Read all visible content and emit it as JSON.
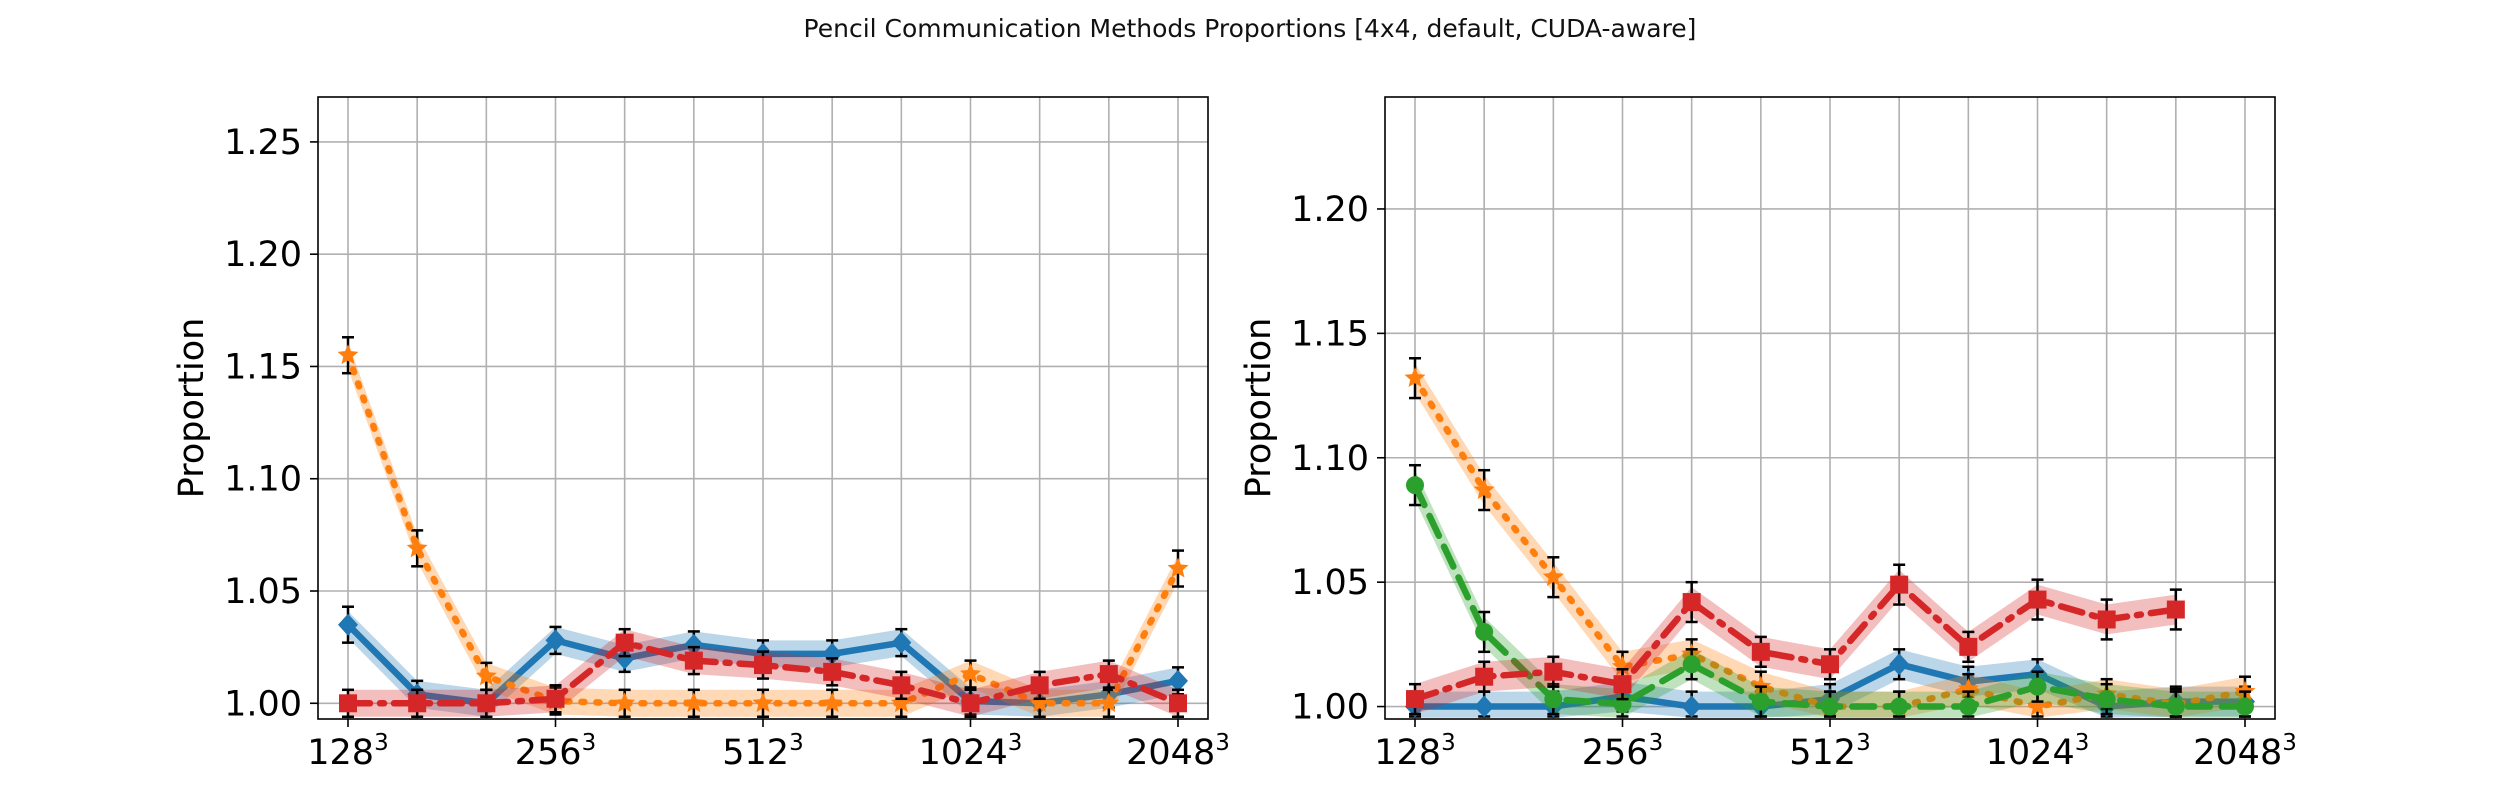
{
  "figure_title": "Pencil Communication Methods Proportions [4x4, default, CUDA-aware]",
  "chart_data": [
    {
      "type": "line",
      "panel": "left",
      "ylabel": "Proportion",
      "ylim": [
        0.993,
        1.27
      ],
      "y_ticks": [
        "1.00",
        "1.05",
        "1.10",
        "1.15",
        "1.20",
        "1.25"
      ],
      "x_ticks": [
        {
          "base": "128",
          "exp": "3"
        },
        {
          "base": "256",
          "exp": "3"
        },
        {
          "base": "512",
          "exp": "3"
        },
        {
          "base": "1024",
          "exp": "3"
        },
        {
          "base": "2048",
          "exp": "3"
        }
      ],
      "grid": true,
      "series": [
        {
          "color": "#1f77b4",
          "style": "solid",
          "marker": "diamond",
          "values": [
            1.035,
            1.004,
            1.0,
            1.028,
            1.02,
            1.026,
            1.022,
            1.022,
            1.027,
            1.001,
            1.0,
            1.004,
            1.01
          ]
        },
        {
          "color": "#ff7f0e",
          "style": "dotted",
          "marker": "star",
          "values": [
            1.155,
            1.069,
            1.012,
            1.001,
            1.0,
            1.0,
            1.0,
            1.0,
            1.0,
            1.013,
            1.0,
            1.0,
            1.06
          ]
        },
        {
          "color": "#d62728",
          "style": "dashdot",
          "marker": "square",
          "values": [
            1.0,
            1.0,
            1.0,
            1.002,
            1.027,
            1.019,
            1.017,
            1.014,
            1.008,
            1.0,
            1.008,
            1.013,
            1.0
          ]
        }
      ]
    },
    {
      "type": "line",
      "panel": "right",
      "ylabel": "Proportion",
      "ylim": [
        0.995,
        1.245
      ],
      "y_ticks": [
        "1.00",
        "1.05",
        "1.10",
        "1.15",
        "1.20"
      ],
      "x_ticks": [
        {
          "base": "128",
          "exp": "3"
        },
        {
          "base": "256",
          "exp": "3"
        },
        {
          "base": "512",
          "exp": "3"
        },
        {
          "base": "1024",
          "exp": "3"
        },
        {
          "base": "2048",
          "exp": "3"
        }
      ],
      "grid": true,
      "series": [
        {
          "color": "#1f77b4",
          "style": "solid",
          "marker": "diamond",
          "values": [
            1.0,
            1.0,
            1.0,
            1.004,
            1.0,
            1.0,
            1.003,
            1.017,
            1.01,
            1.013,
            1.0,
            1.002,
            1.002
          ]
        },
        {
          "color": "#ff7f0e",
          "style": "dotted",
          "marker": "star",
          "values": [
            1.132,
            1.087,
            1.052,
            1.016,
            1.021,
            1.008,
            1.0,
            1.0,
            1.007,
            1.0,
            1.005,
            1.001,
            1.006
          ]
        },
        {
          "color": "#2ca02c",
          "style": "dashed",
          "marker": "circle",
          "values": [
            1.089,
            1.03,
            1.003,
            1.001,
            1.017,
            1.002,
            1.0,
            1.0,
            1.0,
            1.008,
            1.003,
            1.0,
            1.0
          ]
        },
        {
          "color": "#d62728",
          "style": "dashdot",
          "marker": "square",
          "values": [
            1.003,
            1.012,
            1.014,
            1.009,
            1.042,
            1.022,
            1.017,
            1.049,
            1.024,
            1.043,
            1.035,
            1.039,
            null
          ]
        }
      ]
    }
  ]
}
